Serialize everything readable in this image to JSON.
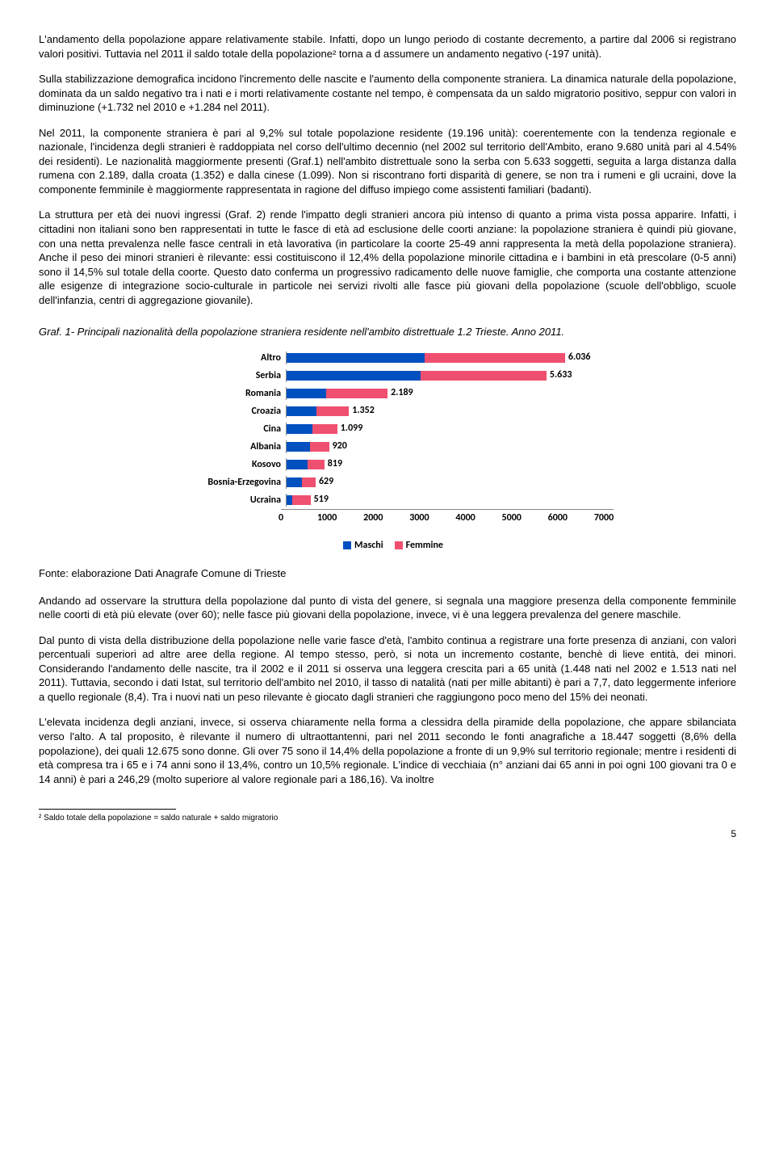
{
  "paragraphs": {
    "p1": "L'andamento della popolazione appare relativamente stabile. Infatti, dopo un lungo periodo di costante decremento, a partire dal 2006 si registrano valori positivi. Tuttavia nel 2011 il saldo totale della popolazione² torna a d assumere un andamento negativo (-197 unità).",
    "p2": "Sulla stabilizzazione demografica incidono l'incremento delle nascite e l'aumento della componente straniera. La dinamica naturale della popolazione, dominata da un saldo negativo tra i nati e i morti relativamente costante nel tempo, è compensata da un saldo migratorio positivo, seppur con valori in diminuzione (+1.732 nel 2010 e +1.284 nel 2011).",
    "p3": "Nel 2011, la componente straniera è pari al 9,2% sul totale popolazione residente (19.196 unità): coerentemente con la tendenza regionale e nazionale, l'incidenza degli stranieri è raddoppiata nel corso dell'ultimo decennio (nel 2002 sul territorio dell'Ambito, erano 9.680 unità pari al 4.54% dei residenti). Le nazionalità maggiormente presenti (Graf.1) nell'ambito distrettuale sono la serba con 5.633 soggetti, seguita a larga distanza dalla rumena con 2.189, dalla croata (1.352) e dalla cinese (1.099). Non si riscontrano forti disparità di genere, se non tra i rumeni e gli ucraini, dove la componente femminile è maggiormente rappresentata in ragione del diffuso impiego come assistenti familiari (badanti).",
    "p4": "La struttura per età dei nuovi ingressi (Graf. 2) rende l'impatto degli stranieri ancora più intenso di quanto a prima vista possa apparire. Infatti, i cittadini non italiani sono ben rappresentati in tutte le fasce di età ad esclusione delle coorti anziane: la popolazione straniera è quindi più giovane, con una netta prevalenza nelle fasce centrali in età lavorativa (in particolare la coorte 25-49 anni rappresenta la metà della popolazione straniera). Anche il peso dei minori stranieri è rilevante: essi costituiscono il 12,4% della popolazione minorile cittadina e i bambini in età prescolare (0-5 anni) sono il 14,5% sul totale della coorte. Questo dato conferma un progressivo radicamento delle nuove famiglie, che comporta una costante attenzione alle esigenze di integrazione socio-culturale in particole nei servizi rivolti alle fasce più giovani della popolazione (scuole dell'obbligo, scuole dell'infanzia, centri di aggregazione giovanile).",
    "p5": "Andando ad osservare la struttura della popolazione dal punto di vista del genere, si segnala una maggiore presenza della componente femminile nelle coorti di età più elevate (over 60); nelle fasce più giovani della popolazione, invece, vi è una leggera prevalenza del genere maschile.",
    "p6": "Dal punto di vista della distribuzione della popolazione nelle varie fasce d'età, l'ambito continua a registrare una forte presenza di anziani, con valori percentuali superiori ad altre aree della regione. Al tempo stesso, però, si nota un incremento costante, benchè di lieve entità, dei minori. Considerando l'andamento delle nascite, tra il 2002 e il 2011 si osserva una leggera crescita pari a 65 unità (1.448 nati nel 2002 e 1.513 nati nel 2011). Tuttavia, secondo i dati Istat, sul territorio dell'ambito nel 2010, il tasso di natalità (nati per mille abitanti) è pari a 7,7, dato leggermente inferiore a quello regionale (8,4). Tra i nuovi nati un peso rilevante è giocato dagli stranieri che raggiungono poco meno del 15% dei neonati.",
    "p7": "L'elevata incidenza degli anziani, invece, si osserva chiaramente nella forma a clessidra della piramide della popolazione, che appare sbilanciata verso l'alto. A tal proposito, è rilevante il numero di ultraottantenni, pari nel 2011 secondo le fonti anagrafiche a 18.447 soggetti (8,6% della popolazione), dei quali 12.675 sono donne. Gli over 75 sono il 14,4% della popolazione a fronte di un 9,9% sul territorio regionale; mentre i residenti di età compresa tra i 65 e i 74 anni sono il 13,4%, contro un 10,5% regionale. L'indice di vecchiaia (n° anziani dai 65 anni in poi ogni 100 giovani tra 0 e 14 anni) è pari a 246,29 (molto superiore al valore regionale pari a 186,16). Va inoltre"
  },
  "chart": {
    "title": "Graf. 1- Principali nazionalità della popolazione straniera residente nell'ambito distrettuale 1.2 Trieste. Anno 2011.",
    "type": "bar-horizontal-stacked",
    "x_max": 7000,
    "x_ticks": [
      0,
      1000,
      2000,
      3000,
      4000,
      5000,
      6000,
      7000
    ],
    "colors": {
      "male": "#0050c0",
      "female": "#f05070",
      "axis": "#888888",
      "bg": "#ffffff"
    },
    "legend": {
      "male": "Maschi",
      "female": "Femmine"
    },
    "rows": [
      {
        "label": "Altro",
        "value_text": "6.036",
        "male": 3000,
        "female": 3036
      },
      {
        "label": "Serbia",
        "value_text": "5.633",
        "male": 2900,
        "female": 2733
      },
      {
        "label": "Romania",
        "value_text": "2.189",
        "male": 850,
        "female": 1339
      },
      {
        "label": "Croazia",
        "value_text": "1.352",
        "male": 650,
        "female": 702
      },
      {
        "label": "Cina",
        "value_text": "1.099",
        "male": 560,
        "female": 539
      },
      {
        "label": "Albania",
        "value_text": "920",
        "male": 500,
        "female": 420
      },
      {
        "label": "Kosovo",
        "value_text": "819",
        "male": 450,
        "female": 369
      },
      {
        "label": "Bosnia-Erzegovina",
        "value_text": "629",
        "male": 330,
        "female": 299
      },
      {
        "label": "Ucraina",
        "value_text": "519",
        "male": 120,
        "female": 399
      }
    ]
  },
  "source": "Fonte: elaborazione Dati Anagrafe Comune di Trieste",
  "footnote": "² Saldo totale della popolazione = saldo naturale + saldo migratorio",
  "page_number": "5"
}
